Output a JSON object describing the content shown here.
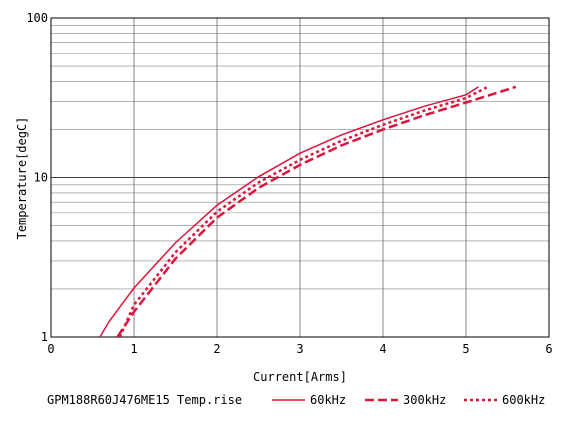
{
  "chart_data": {
    "type": "line",
    "xlabel": "Current[Arms]",
    "ylabel": "Temperature[degC]",
    "legend_title": "GPM188R60J476ME15 Temp.rise",
    "xlim": [
      0,
      6
    ],
    "xticks": [
      0,
      1,
      2,
      3,
      4,
      5,
      6
    ],
    "ylim": [
      1,
      100
    ],
    "yticks": [
      1,
      10,
      100
    ],
    "log_y": true,
    "grid": true,
    "minor_grid": true,
    "legend": "bottom",
    "series": [
      {
        "name": "60kHz",
        "color": "#dc143c",
        "style": "solid",
        "x": [
          0.59,
          0.7,
          1,
          1.5,
          2,
          2.5,
          3,
          3.5,
          4,
          4.5,
          5,
          5.15
        ],
        "values": [
          1,
          1.25,
          2.03,
          3.9,
          6.7,
          10.1,
          14.2,
          18.5,
          23,
          28,
          33,
          37
        ]
      },
      {
        "name": "300kHz",
        "color": "#dc143c",
        "style": "dashed",
        "x": [
          0.8,
          1,
          1.5,
          2,
          2.5,
          3,
          3.5,
          4,
          4.5,
          5,
          5.6
        ],
        "values": [
          1,
          1.44,
          3.1,
          5.6,
          8.6,
          12,
          15.9,
          20,
          24.6,
          29.5,
          37
        ]
      },
      {
        "name": "600kHz",
        "color": "#dc143c",
        "style": "dotted",
        "x": [
          0.83,
          1,
          1.5,
          2,
          2.5,
          3,
          3.5,
          4,
          4.5,
          5,
          5.25
        ],
        "values": [
          1,
          1.59,
          3.4,
          6.1,
          9.3,
          12.9,
          17,
          21.4,
          26.3,
          31.5,
          36.7
        ]
      }
    ]
  }
}
